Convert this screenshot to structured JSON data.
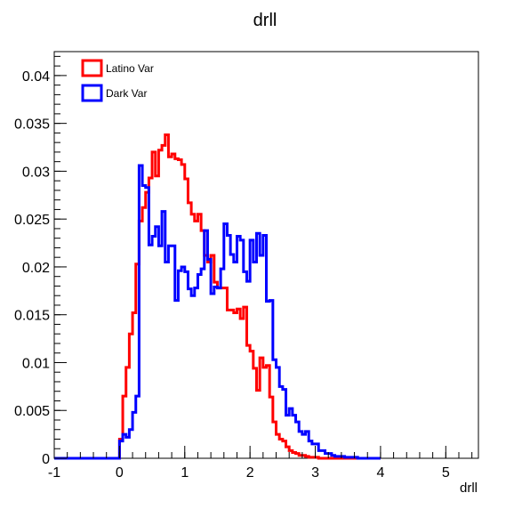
{
  "chart_data": {
    "type": "line",
    "style": "step-histogram",
    "title": "drll",
    "xlabel": "drll",
    "ylabel": "",
    "xlim": [
      -1,
      5.5
    ],
    "ylim": [
      0,
      0.0425
    ],
    "x_ticks": [
      -1,
      0,
      1,
      2,
      3,
      4,
      5
    ],
    "x_tick_labels": [
      "-1",
      "0",
      "1",
      "2",
      "3",
      "4",
      "5"
    ],
    "y_ticks": [
      0,
      0.005,
      0.01,
      0.015,
      0.02,
      0.025,
      0.03,
      0.035,
      0.04
    ],
    "y_tick_labels": [
      "0",
      "0.005",
      "0.01",
      "0.015",
      "0.02",
      "0.025",
      "0.03",
      "0.035",
      "0.04"
    ],
    "grid": false,
    "legend_position": "top-left",
    "bin_edges_start": -1,
    "bin_width": 0.05,
    "series": [
      {
        "name": "Latino Var",
        "color": "#ff0000",
        "values": [
          0,
          0,
          0,
          0,
          0,
          0,
          0,
          0,
          0,
          0,
          0,
          0,
          0,
          0,
          0,
          0,
          0,
          0,
          0,
          0,
          0.002,
          0.0065,
          0.0095,
          0.013,
          0.0152,
          0.0203,
          0.0248,
          0.0262,
          0.0278,
          0.0293,
          0.032,
          0.0295,
          0.0322,
          0.0327,
          0.0338,
          0.0315,
          0.0318,
          0.0313,
          0.0312,
          0.0307,
          0.0292,
          0.0267,
          0.0255,
          0.0248,
          0.0255,
          0.0238,
          0.0212,
          0.0205,
          0.0212,
          0.0184,
          0.0178,
          0.0178,
          0.0178,
          0.0155,
          0.0155,
          0.0152,
          0.0156,
          0.0146,
          0.0158,
          0.0118,
          0.0112,
          0.0094,
          0.0071,
          0.0105,
          0.0095,
          0.0097,
          0.0064,
          0.0038,
          0.0025,
          0.002,
          0.0018,
          0.0012,
          0.0008,
          0.0006,
          0.0005,
          0.0003,
          0.0003,
          0.0002,
          0.0001,
          0.0001,
          0.0001,
          0,
          0,
          0,
          0,
          0,
          0,
          0,
          0,
          0,
          0,
          0,
          0,
          0,
          0,
          0,
          0,
          0,
          0,
          0
        ]
      },
      {
        "name": "Dark Var",
        "color": "#0000ff",
        "values": [
          0,
          0,
          0,
          0,
          0,
          0,
          0,
          0,
          0,
          0,
          0,
          0,
          0,
          0,
          0,
          0,
          0,
          0,
          0,
          0,
          0.0018,
          0.0025,
          0.0022,
          0.003,
          0.0048,
          0.0065,
          0.0306,
          0.0285,
          0.0283,
          0.0223,
          0.0232,
          0.0242,
          0.0222,
          0.0258,
          0.0205,
          0.0222,
          0.0222,
          0.0165,
          0.0196,
          0.02,
          0.0195,
          0.0177,
          0.017,
          0.0178,
          0.0192,
          0.0198,
          0.0238,
          0.0208,
          0.0172,
          0.0179,
          0.0178,
          0.0198,
          0.0245,
          0.0233,
          0.0213,
          0.0205,
          0.0232,
          0.0228,
          0.0195,
          0.0185,
          0.0228,
          0.0205,
          0.0235,
          0.0212,
          0.0233,
          0.0164,
          0.0165,
          0.0103,
          0.0095,
          0.0075,
          0.0072,
          0.0045,
          0.0052,
          0.0045,
          0.0038,
          0.0028,
          0.0025,
          0.0028,
          0.0018,
          0.0015,
          0.0015,
          0.0008,
          0.0008,
          0.0005,
          0.0005,
          0.0003,
          0.0002,
          0.0002,
          0.0002,
          0.0001,
          0.0001,
          0.0001,
          0.0001,
          0,
          0,
          0,
          0,
          0,
          0,
          0
        ]
      }
    ]
  }
}
